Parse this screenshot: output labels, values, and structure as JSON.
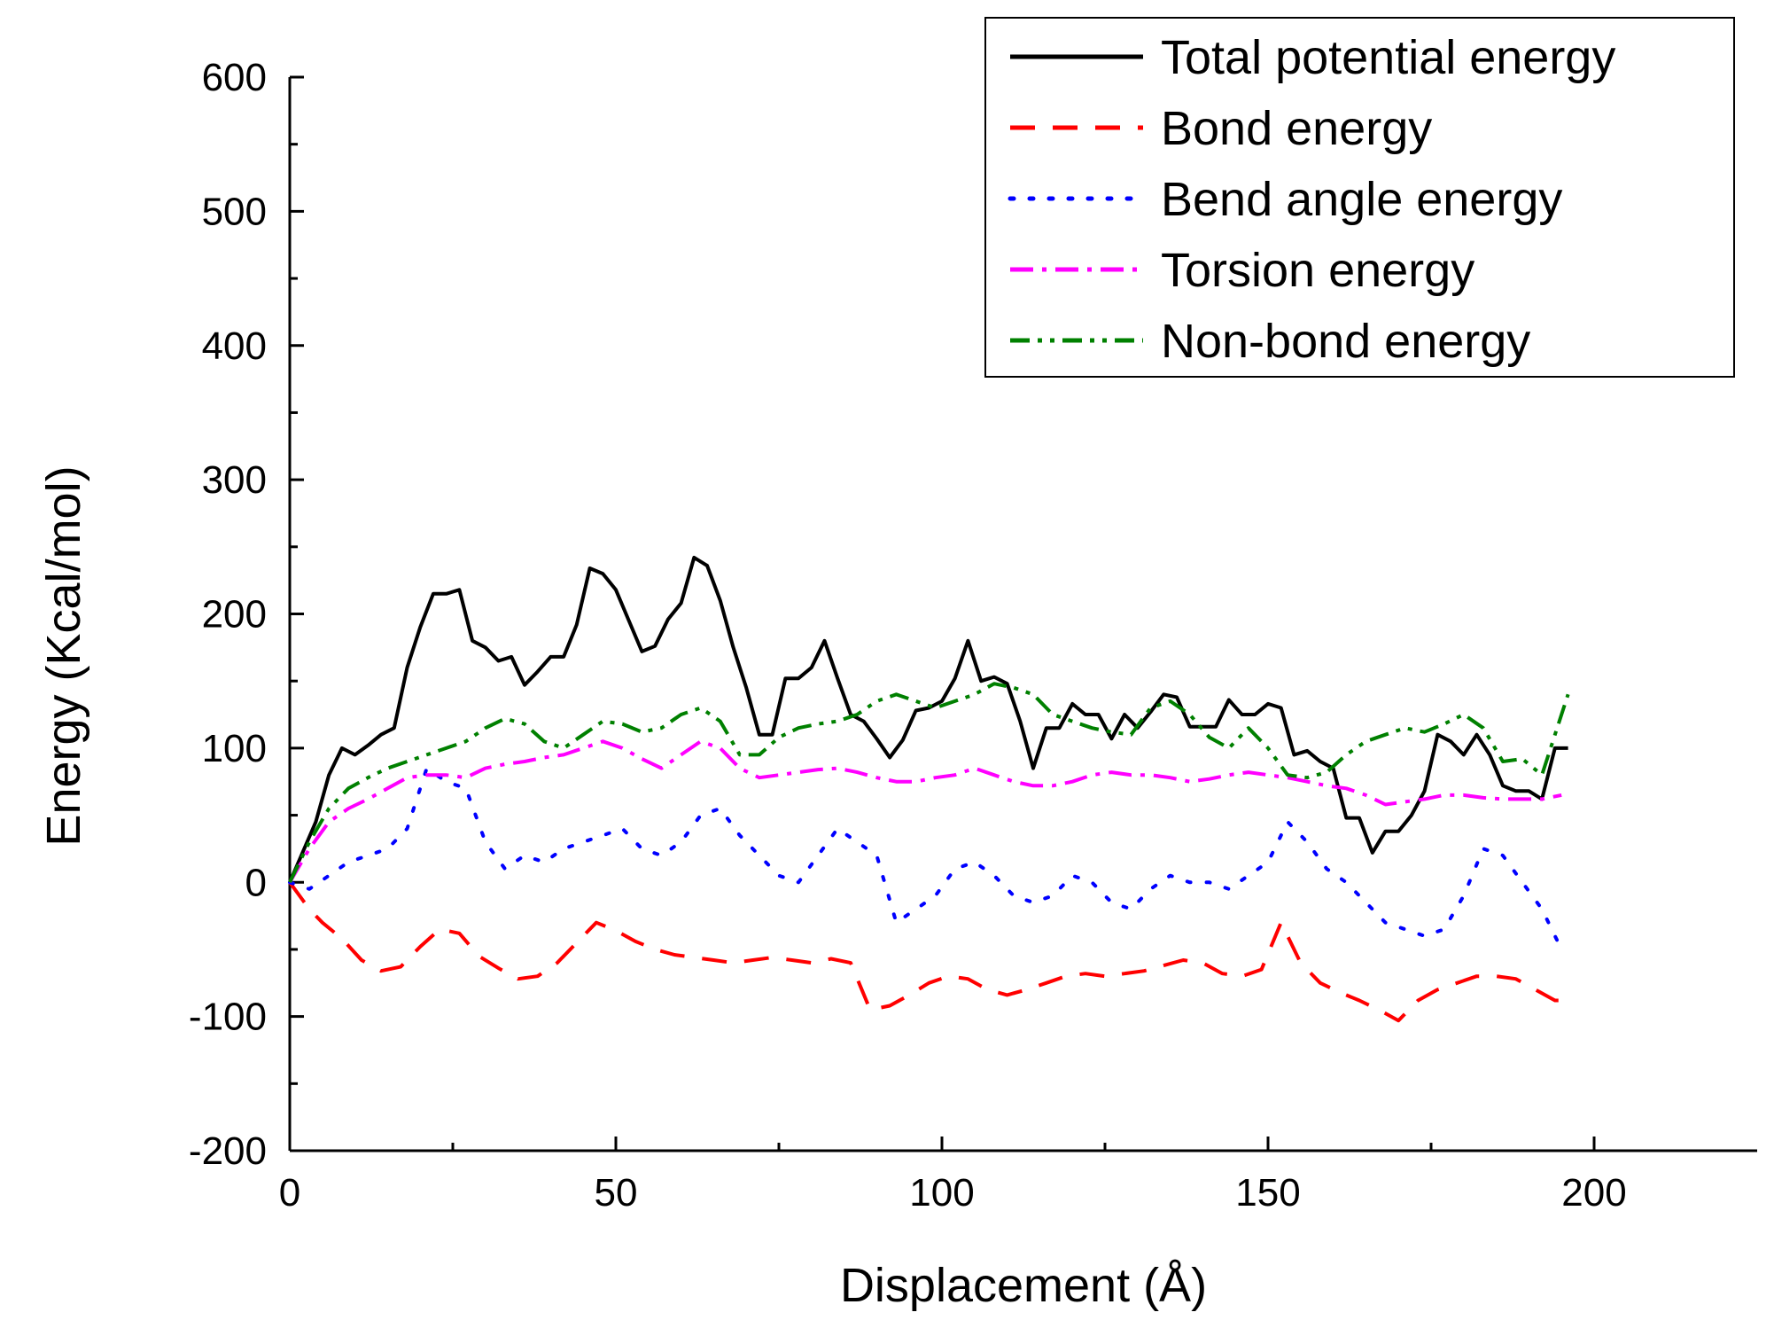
{
  "chart_data": {
    "type": "line",
    "title": "",
    "xlabel": "Displacement (Å)",
    "ylabel": "Energy (Kcal/mol)",
    "xlim": [
      0,
      225
    ],
    "ylim": [
      -200,
      600
    ],
    "xticks": [
      0,
      50,
      100,
      150,
      200
    ],
    "yticks": [
      -200,
      -100,
      0,
      100,
      200,
      300,
      400,
      500,
      600
    ],
    "xtick_labels": [
      "0",
      "50",
      "100",
      "150",
      "200"
    ],
    "ytick_labels": [
      "-200",
      "-100",
      "0",
      "100",
      "200",
      "300",
      "400",
      "500",
      "600"
    ],
    "legend_position": "top-right",
    "series": [
      {
        "name": "Total potential energy",
        "color": "#000000",
        "style": "solid",
        "x": [
          0,
          4,
          6,
          8,
          10,
          12,
          14,
          16,
          18,
          20,
          22,
          24,
          26,
          28,
          30,
          32,
          34,
          36,
          38,
          40,
          42,
          44,
          46,
          48,
          50,
          52,
          54,
          56,
          58,
          60,
          62,
          64,
          66,
          68,
          70,
          72,
          74,
          76,
          78,
          80,
          82,
          84,
          86,
          88,
          90,
          92,
          94,
          96,
          98,
          100,
          102,
          104,
          106,
          108,
          110,
          112,
          114,
          116,
          118,
          120,
          122,
          124,
          126,
          128,
          130,
          132,
          134,
          136,
          138,
          140,
          142,
          144,
          146,
          148,
          150,
          152,
          154,
          156,
          158,
          160,
          162,
          164,
          166,
          168,
          170,
          172,
          174,
          176,
          178,
          180,
          182,
          184,
          186,
          188,
          190,
          192,
          194,
          196
        ],
        "y": [
          0,
          45,
          80,
          100,
          95,
          102,
          110,
          115,
          160,
          190,
          215,
          215,
          218,
          180,
          175,
          165,
          168,
          147,
          157,
          168,
          168,
          192,
          234,
          230,
          218,
          195,
          172,
          176,
          196,
          208,
          242,
          236,
          210,
          175,
          145,
          110,
          110,
          152,
          152,
          160,
          180,
          152,
          125,
          120,
          107,
          93,
          106,
          128,
          130,
          135,
          152,
          180,
          150,
          153,
          148,
          120,
          85,
          115,
          115,
          133,
          125,
          125,
          107,
          125,
          115,
          127,
          140,
          138,
          116,
          116,
          116,
          136,
          125,
          125,
          133,
          130,
          95,
          98,
          90,
          85,
          48,
          48,
          22,
          38,
          38,
          50,
          68,
          110,
          105,
          95,
          110,
          95,
          72,
          68,
          68,
          62,
          100,
          100
        ]
      },
      {
        "name": "Bond energy",
        "color": "#ff0000",
        "style": "dashed",
        "x": [
          0,
          3,
          5,
          8,
          11,
          14,
          17,
          20,
          23,
          26,
          29,
          32,
          35,
          38,
          41,
          44,
          47,
          50,
          53,
          56,
          59,
          62,
          65,
          68,
          71,
          74,
          77,
          80,
          83,
          86,
          89,
          92,
          95,
          98,
          101,
          104,
          107,
          110,
          113,
          116,
          119,
          122,
          125,
          128,
          131,
          134,
          137,
          140,
          143,
          146,
          149,
          152,
          155,
          158,
          161,
          164,
          167,
          170,
          173,
          176,
          179,
          182,
          185,
          188,
          191,
          194,
          196
        ],
        "y": [
          0,
          -20,
          -30,
          -42,
          -58,
          -66,
          -63,
          -48,
          -35,
          -38,
          -55,
          -64,
          -72,
          -70,
          -60,
          -45,
          -30,
          -36,
          -44,
          -50,
          -54,
          -56,
          -58,
          -60,
          -58,
          -56,
          -58,
          -60,
          -57,
          -60,
          -95,
          -92,
          -84,
          -75,
          -70,
          -72,
          -80,
          -84,
          -80,
          -75,
          -70,
          -68,
          -70,
          -68,
          -66,
          -62,
          -58,
          -60,
          -68,
          -70,
          -65,
          -30,
          -60,
          -75,
          -82,
          -88,
          -95,
          -103,
          -88,
          -80,
          -75,
          -70,
          -70,
          -72,
          -80,
          -88,
          -88
        ]
      },
      {
        "name": "Bend angle energy",
        "color": "#0000ff",
        "style": "dotted",
        "x": [
          0,
          3,
          6,
          9,
          12,
          15,
          18,
          21,
          24,
          27,
          30,
          33,
          36,
          39,
          42,
          45,
          48,
          51,
          54,
          57,
          60,
          63,
          66,
          69,
          72,
          75,
          78,
          81,
          84,
          87,
          90,
          93,
          96,
          99,
          102,
          105,
          108,
          111,
          114,
          117,
          120,
          123,
          126,
          129,
          132,
          135,
          138,
          141,
          144,
          147,
          150,
          153,
          156,
          159,
          162,
          165,
          168,
          171,
          174,
          177,
          180,
          183,
          186,
          189,
          192,
          195
        ],
        "y": [
          0,
          -5,
          5,
          15,
          20,
          25,
          40,
          85,
          75,
          70,
          30,
          10,
          20,
          15,
          25,
          30,
          35,
          40,
          25,
          20,
          30,
          50,
          55,
          35,
          20,
          5,
          0,
          20,
          40,
          30,
          20,
          -30,
          -20,
          -10,
          10,
          15,
          5,
          -10,
          -15,
          -10,
          5,
          0,
          -15,
          -20,
          -5,
          5,
          0,
          0,
          -5,
          5,
          15,
          45,
          30,
          10,
          0,
          -15,
          -30,
          -35,
          -40,
          -35,
          -10,
          25,
          20,
          0,
          -20,
          -50
        ]
      },
      {
        "name": "Torsion energy",
        "color": "#ff00ff",
        "style": "dashdot",
        "x": [
          0,
          3,
          6,
          9,
          12,
          15,
          18,
          21,
          24,
          27,
          30,
          33,
          36,
          39,
          42,
          45,
          48,
          51,
          54,
          57,
          60,
          63,
          66,
          69,
          72,
          75,
          78,
          81,
          84,
          87,
          90,
          93,
          96,
          99,
          102,
          105,
          108,
          111,
          114,
          117,
          120,
          123,
          126,
          129,
          132,
          135,
          138,
          141,
          144,
          147,
          150,
          153,
          156,
          159,
          162,
          165,
          168,
          171,
          174,
          177,
          180,
          183,
          186,
          189,
          192,
          195
        ],
        "y": [
          0,
          25,
          45,
          55,
          62,
          70,
          78,
          80,
          80,
          78,
          85,
          88,
          90,
          93,
          95,
          100,
          105,
          100,
          92,
          85,
          95,
          105,
          100,
          85,
          78,
          80,
          82,
          84,
          85,
          82,
          78,
          75,
          75,
          78,
          80,
          85,
          80,
          75,
          72,
          72,
          75,
          80,
          82,
          80,
          80,
          78,
          75,
          77,
          80,
          82,
          80,
          78,
          75,
          72,
          70,
          65,
          58,
          60,
          62,
          65,
          65,
          63,
          62,
          62,
          62,
          65
        ]
      },
      {
        "name": "Non-bond energy",
        "color": "#008000",
        "style": "dashdotdot",
        "x": [
          0,
          3,
          6,
          9,
          12,
          15,
          18,
          21,
          24,
          27,
          30,
          33,
          36,
          39,
          42,
          45,
          48,
          51,
          54,
          57,
          60,
          63,
          66,
          69,
          72,
          75,
          78,
          81,
          84,
          87,
          90,
          93,
          96,
          99,
          102,
          105,
          108,
          111,
          114,
          117,
          120,
          123,
          126,
          129,
          132,
          135,
          138,
          141,
          144,
          147,
          150,
          153,
          156,
          159,
          162,
          165,
          168,
          171,
          174,
          177,
          180,
          183,
          186,
          189,
          192,
          195,
          196
        ],
        "y": [
          0,
          30,
          55,
          70,
          78,
          85,
          90,
          95,
          100,
          105,
          115,
          122,
          118,
          105,
          100,
          110,
          120,
          118,
          112,
          115,
          125,
          130,
          120,
          95,
          95,
          108,
          115,
          118,
          120,
          125,
          135,
          140,
          135,
          130,
          135,
          140,
          148,
          145,
          140,
          125,
          120,
          115,
          112,
          110,
          130,
          135,
          125,
          108,
          100,
          115,
          100,
          80,
          78,
          82,
          95,
          105,
          110,
          115,
          112,
          118,
          125,
          115,
          90,
          92,
          80,
          125,
          140
        ]
      }
    ]
  }
}
